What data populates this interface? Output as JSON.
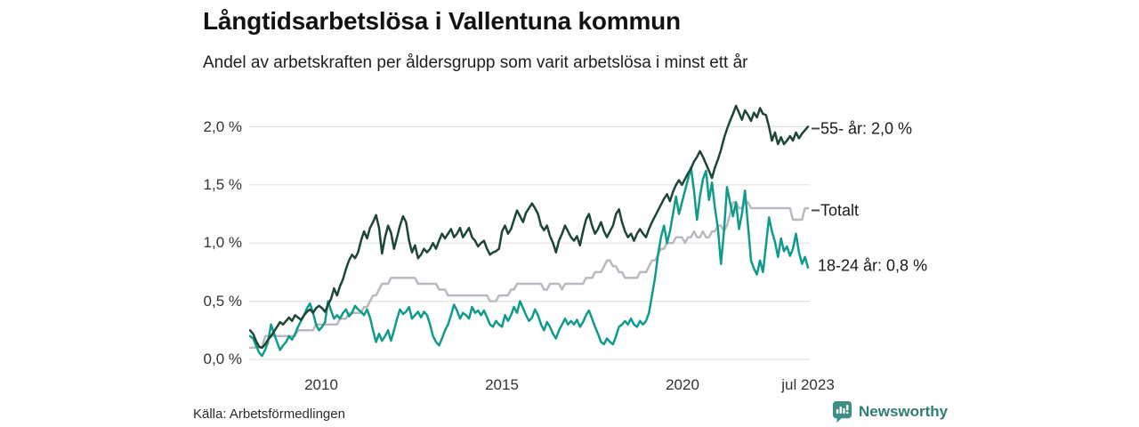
{
  "source": {
    "label": "Källa: Arbetsförmedlingen"
  },
  "branding": {
    "name": "Newsworthy",
    "logo_color": "#3d8e84",
    "text_color": "#2f7e75"
  },
  "chart_data": {
    "type": "line",
    "title": "Långtidsarbetslösa i Vallentuna kommun",
    "subtitle": "Andel av arbetskraften per åldersgrupp som varit arbetslösa i minst ett år",
    "grid": true,
    "gridline_color": "#e2e2e2",
    "legend_position": "right-inline",
    "x_start_year": 2008.0,
    "x_end_year": 2023.5,
    "x_frequency": "monthly",
    "ylim": [
      0,
      2.2
    ],
    "y_ticks": [
      {
        "value": 0.0,
        "label": "0,0 %"
      },
      {
        "value": 0.5,
        "label": "0,5 %"
      },
      {
        "value": 1.0,
        "label": "1,0 %"
      },
      {
        "value": 1.5,
        "label": "1,5 %"
      },
      {
        "value": 2.0,
        "label": "2,0 %"
      }
    ],
    "x_ticks": [
      {
        "year": 2010.0,
        "label": "2010"
      },
      {
        "year": 2015.0,
        "label": "2015"
      },
      {
        "year": 2020.0,
        "label": "2020"
      },
      {
        "year": 2023.5,
        "label": "jul 2023"
      }
    ],
    "series": [
      {
        "name": "Totalt",
        "end_label": "Totalt",
        "end_label_dash": true,
        "color": "#b9b9c1",
        "end_value": 1.3,
        "values": [
          0.1,
          0.1,
          0.1,
          0.1,
          0.1,
          0.2,
          0.2,
          0.2,
          0.2,
          0.2,
          0.2,
          0.2,
          0.2,
          0.2,
          0.2,
          0.2,
          0.25,
          0.25,
          0.25,
          0.25,
          0.25,
          0.25,
          0.3,
          0.3,
          0.3,
          0.3,
          0.3,
          0.3,
          0.3,
          0.3,
          0.35,
          0.35,
          0.35,
          0.4,
          0.4,
          0.4,
          0.4,
          0.4,
          0.45,
          0.45,
          0.5,
          0.55,
          0.55,
          0.6,
          0.65,
          0.65,
          0.65,
          0.7,
          0.7,
          0.7,
          0.7,
          0.7,
          0.7,
          0.7,
          0.7,
          0.7,
          0.65,
          0.65,
          0.65,
          0.65,
          0.65,
          0.65,
          0.65,
          0.6,
          0.6,
          0.6,
          0.55,
          0.55,
          0.55,
          0.55,
          0.55,
          0.55,
          0.55,
          0.55,
          0.55,
          0.55,
          0.55,
          0.55,
          0.55,
          0.55,
          0.5,
          0.5,
          0.5,
          0.55,
          0.55,
          0.55,
          0.55,
          0.6,
          0.6,
          0.65,
          0.65,
          0.65,
          0.65,
          0.65,
          0.65,
          0.65,
          0.65,
          0.65,
          0.6,
          0.6,
          0.65,
          0.65,
          0.65,
          0.65,
          0.6,
          0.65,
          0.65,
          0.65,
          0.65,
          0.65,
          0.65,
          0.65,
          0.7,
          0.7,
          0.7,
          0.75,
          0.75,
          0.75,
          0.8,
          0.85,
          0.85,
          0.8,
          0.8,
          0.75,
          0.75,
          0.7,
          0.7,
          0.7,
          0.7,
          0.7,
          0.75,
          0.75,
          0.75,
          0.8,
          0.85,
          0.85,
          0.9,
          0.95,
          0.95,
          1.0,
          1.0,
          1.0,
          1.05,
          1.05,
          1.05,
          1.0,
          1.05,
          1.05,
          1.1,
          1.05,
          1.05,
          1.1,
          1.05,
          1.05,
          1.1,
          1.1,
          1.15,
          1.15,
          1.1,
          1.15,
          1.25,
          1.35,
          1.35,
          1.3,
          1.3,
          1.35,
          1.35,
          1.3,
          1.3,
          1.3,
          1.3,
          1.3,
          1.3,
          1.3,
          1.3,
          1.3,
          1.3,
          1.3,
          1.3,
          1.3,
          1.3,
          1.2,
          1.2,
          1.2,
          1.2,
          1.3,
          1.3
        ]
      },
      {
        "name": "18-24 år",
        "end_label": "18-24 år: 0,8 %",
        "end_label_dash": false,
        "color": "#0f9b8b",
        "end_value": 0.8,
        "values": [
          0.2,
          0.18,
          0.12,
          0.06,
          0.03,
          0.08,
          0.15,
          0.3,
          0.22,
          0.15,
          0.08,
          0.12,
          0.15,
          0.2,
          0.17,
          0.22,
          0.28,
          0.33,
          0.38,
          0.44,
          0.48,
          0.4,
          0.3,
          0.25,
          0.28,
          0.32,
          0.5,
          0.42,
          0.35,
          0.38,
          0.35,
          0.4,
          0.43,
          0.37,
          0.4,
          0.46,
          0.43,
          0.41,
          0.38,
          0.43,
          0.36,
          0.25,
          0.15,
          0.22,
          0.16,
          0.2,
          0.25,
          0.16,
          0.25,
          0.35,
          0.43,
          0.39,
          0.41,
          0.45,
          0.35,
          0.38,
          0.41,
          0.36,
          0.41,
          0.38,
          0.3,
          0.2,
          0.15,
          0.12,
          0.18,
          0.25,
          0.3,
          0.38,
          0.47,
          0.42,
          0.35,
          0.4,
          0.38,
          0.35,
          0.45,
          0.4,
          0.42,
          0.38,
          0.42,
          0.36,
          0.3,
          0.28,
          0.33,
          0.3,
          0.28,
          0.38,
          0.33,
          0.38,
          0.45,
          0.4,
          0.5,
          0.44,
          0.38,
          0.33,
          0.36,
          0.43,
          0.38,
          0.3,
          0.25,
          0.32,
          0.28,
          0.22,
          0.18,
          0.25,
          0.3,
          0.35,
          0.3,
          0.33,
          0.3,
          0.34,
          0.28,
          0.32,
          0.38,
          0.42,
          0.35,
          0.28,
          0.22,
          0.15,
          0.13,
          0.18,
          0.15,
          0.13,
          0.2,
          0.28,
          0.3,
          0.33,
          0.3,
          0.35,
          0.3,
          0.28,
          0.33,
          0.3,
          0.33,
          0.4,
          0.55,
          0.7,
          0.9,
          1.05,
          1.15,
          1.0,
          1.1,
          1.25,
          1.4,
          1.25,
          1.35,
          1.45,
          1.55,
          1.65,
          1.45,
          1.2,
          1.4,
          1.55,
          1.62,
          1.37,
          1.52,
          1.3,
          1.12,
          0.82,
          1.1,
          1.48,
          1.35,
          1.23,
          1.35,
          1.12,
          1.25,
          1.45,
          1.15,
          0.85,
          0.78,
          0.73,
          0.85,
          0.75,
          0.98,
          1.22,
          1.1,
          1.01,
          0.88,
          1.04,
          0.93,
          0.97,
          0.89,
          0.95,
          1.08,
          0.92,
          0.82,
          0.88,
          0.79
        ]
      },
      {
        "name": "55- år",
        "end_label": "55- år: 2,0 %",
        "end_label_dash": true,
        "color": "#1d4635",
        "end_value": 2.0,
        "values": [
          0.25,
          0.22,
          0.16,
          0.11,
          0.1,
          0.13,
          0.17,
          0.2,
          0.24,
          0.28,
          0.32,
          0.3,
          0.33,
          0.36,
          0.33,
          0.38,
          0.36,
          0.34,
          0.38,
          0.41,
          0.43,
          0.4,
          0.44,
          0.46,
          0.44,
          0.41,
          0.47,
          0.52,
          0.61,
          0.55,
          0.63,
          0.69,
          0.78,
          0.85,
          0.9,
          0.87,
          0.92,
          1.02,
          1.1,
          1.04,
          1.13,
          1.18,
          1.24,
          1.13,
          0.91,
          1.05,
          1.15,
          1.09,
          0.95,
          1.05,
          1.15,
          1.23,
          1.18,
          1.02,
          0.92,
          0.98,
          0.87,
          0.9,
          0.95,
          0.92,
          0.95,
          1.0,
          0.95,
          1.02,
          1.08,
          1.04,
          1.08,
          1.12,
          1.05,
          1.08,
          1.13,
          1.05,
          1.09,
          1.13,
          1.05,
          1.02,
          0.97,
          1.0,
          1.02,
          0.95,
          0.9,
          0.92,
          0.93,
          0.95,
          1.1,
          1.15,
          1.08,
          1.12,
          1.2,
          1.28,
          1.23,
          1.18,
          1.26,
          1.3,
          1.34,
          1.3,
          1.25,
          1.15,
          1.11,
          1.15,
          1.06,
          1.0,
          0.92,
          1.02,
          1.08,
          1.15,
          1.1,
          1.05,
          1.02,
          1.06,
          0.98,
          1.1,
          1.2,
          1.25,
          1.15,
          1.08,
          1.12,
          1.18,
          1.1,
          1.05,
          1.1,
          1.15,
          1.25,
          1.29,
          1.18,
          1.1,
          1.05,
          1.08,
          1.02,
          1.08,
          1.12,
          1.08,
          1.05,
          1.12,
          1.18,
          1.23,
          1.28,
          1.33,
          1.38,
          1.42,
          1.36,
          1.44,
          1.5,
          1.54,
          1.5,
          1.55,
          1.6,
          1.64,
          1.7,
          1.74,
          1.79,
          1.74,
          1.68,
          1.62,
          1.56,
          1.65,
          1.72,
          1.8,
          1.9,
          1.98,
          2.05,
          2.11,
          2.18,
          2.12,
          2.06,
          2.14,
          2.1,
          2.05,
          2.12,
          2.08,
          2.16,
          2.11,
          2.1,
          2.0,
          1.88,
          1.95,
          1.85,
          1.91,
          1.85,
          1.88,
          1.92,
          1.88,
          1.95,
          1.9,
          1.94,
          1.97,
          2.0
        ]
      }
    ]
  }
}
